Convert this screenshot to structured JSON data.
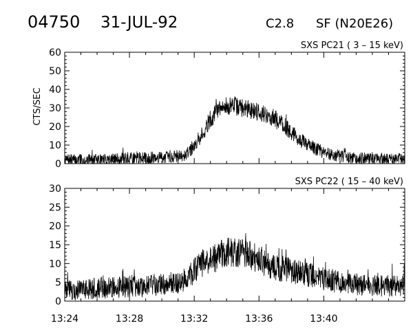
{
  "header": {
    "event_id": "04750",
    "date": "31-JUL-92",
    "goes_class": "C2.8",
    "flare_info": "SF (N20E26)"
  },
  "style": {
    "line_color": "#000000",
    "background": "#ffffff"
  },
  "chart_data": [
    {
      "type": "line",
      "label": "SXS PC21   (  3 – 15 keV)",
      "ylabel": "CTS/SEC",
      "xlabel": "",
      "ylim": [
        0,
        60
      ],
      "yticks": [
        0,
        10,
        20,
        30,
        40,
        50,
        60
      ],
      "xlim": [
        "13:24",
        "13:45"
      ],
      "xticks": [
        "13:24",
        "13:28",
        "13:32",
        "13:36",
        "13:40"
      ],
      "show_xtick_labels": false,
      "noisy": true,
      "noise_amplitude": 5,
      "x": [
        "13:24",
        "13:25",
        "13:26",
        "13:27",
        "13:28",
        "13:29",
        "13:30",
        "13:31",
        "13:31:30",
        "13:32",
        "13:32:30",
        "13:33",
        "13:33:30",
        "13:34",
        "13:34:30",
        "13:35",
        "13:35:30",
        "13:36",
        "13:36:30",
        "13:37",
        "13:37:30",
        "13:38",
        "13:38:30",
        "13:39",
        "13:40",
        "13:41",
        "13:42",
        "13:43",
        "13:44",
        "13:45"
      ],
      "y": [
        2,
        2,
        2,
        2.5,
        3,
        3,
        3.5,
        4,
        5,
        9,
        16,
        24,
        29,
        31,
        31,
        30,
        29,
        28,
        26,
        24,
        21,
        17,
        13,
        10,
        6,
        4,
        3,
        3,
        2.5,
        2.5
      ]
    },
    {
      "type": "line",
      "label": "SXS PC22   ( 15 – 40 keV)",
      "ylabel": "",
      "xlabel": "",
      "ylim": [
        0,
        30
      ],
      "yticks": [
        0,
        5,
        10,
        15,
        20,
        25,
        30
      ],
      "xlim": [
        "13:24",
        "13:45"
      ],
      "xticks": [
        "13:24",
        "13:28",
        "13:32",
        "13:36",
        "13:40"
      ],
      "show_xtick_labels": true,
      "noisy": true,
      "noise_amplitude": 4,
      "x": [
        "13:24",
        "13:25",
        "13:26",
        "13:27",
        "13:28",
        "13:29",
        "13:30",
        "13:31",
        "13:31:30",
        "13:32",
        "13:32:30",
        "13:33",
        "13:33:30",
        "13:34",
        "13:34:30",
        "13:35",
        "13:35:30",
        "13:36",
        "13:36:30",
        "13:37",
        "13:37:30",
        "13:38",
        "13:38:30",
        "13:39",
        "13:40",
        "13:41",
        "13:42",
        "13:43",
        "13:44",
        "13:45"
      ],
      "y": [
        3,
        3,
        3.5,
        3.5,
        4,
        4,
        4.5,
        5,
        6,
        8,
        10,
        11,
        12,
        13,
        13,
        13,
        12,
        11,
        10,
        9,
        8.5,
        8,
        7.5,
        7,
        6,
        5,
        4.5,
        4,
        4,
        4
      ]
    }
  ]
}
